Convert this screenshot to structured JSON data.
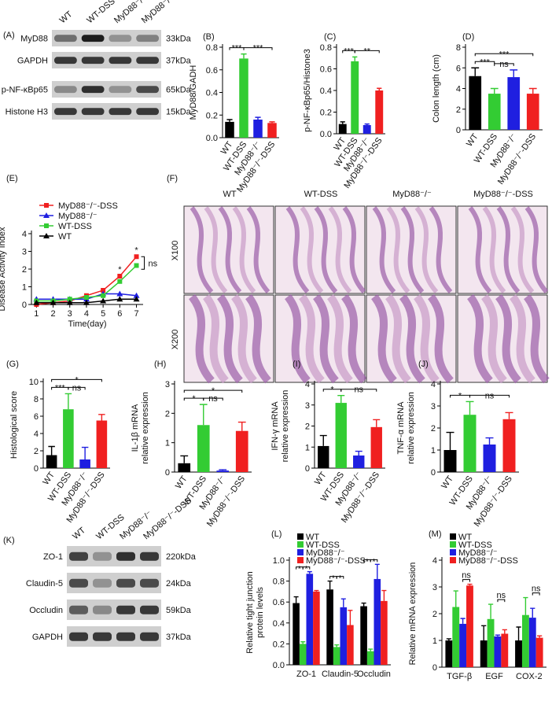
{
  "blots": [
    {
      "label": "(A)",
      "lanes": [
        "WT",
        "WT-DSS",
        "MyD88⁻/⁻",
        "MyD88⁻/⁻-DSS"
      ],
      "rows": [
        {
          "name": "MyD88",
          "size": "33kDa"
        },
        {
          "name": "GAPDH",
          "size": "37kDa"
        },
        {
          "name": "p-NF-κBp65",
          "size": "65kDa"
        },
        {
          "name": "Histone H3",
          "size": "15kDa"
        }
      ]
    },
    {
      "label": "(K)",
      "lanes": [
        "WT",
        "WT-DSS",
        "MyD88⁻/⁻",
        "MyD88⁻/⁻-DSS"
      ],
      "rows": [
        {
          "name": "ZO-1",
          "size": "220kDa"
        },
        {
          "name": "Claudin-5",
          "size": "24kDa"
        },
        {
          "name": "Occludin",
          "size": "59kDa"
        },
        {
          "name": "GAPDH",
          "size": "37kDa"
        }
      ]
    }
  ],
  "histology": {
    "label": "(F)",
    "columns": [
      "WT",
      "WT-DSS",
      "MyD88⁻/⁻",
      "MyD88⁻/⁻-DSS"
    ],
    "rows": [
      "X100",
      "X200"
    ]
  },
  "chart_data": [
    {
      "type": "bar",
      "label": "(B)",
      "ylabel": [
        "MyD88/GADH"
      ],
      "categories": [
        "WT",
        "WT-DSS",
        "MyD88⁻/⁻",
        "MyD88⁻/⁻-DSS"
      ],
      "values": [
        0.14,
        0.7,
        0.16,
        0.13
      ],
      "errors": [
        0.02,
        0.04,
        0.02,
        0.01
      ],
      "colors": [
        "#000000",
        "#33cc33",
        "#1f1fe0",
        "#f02020"
      ],
      "ylim": [
        0,
        0.8
      ],
      "yticks": [
        {
          "value": 0,
          "label": "0.0"
        },
        {
          "value": 0.2,
          "label": "0.2"
        },
        {
          "value": 0.4,
          "label": "0.4"
        },
        {
          "value": 0.6,
          "label": "0.6"
        },
        {
          "value": 0.8,
          "label": "0.8"
        }
      ],
      "annotations": [
        {
          "text": "***",
          "between": [
            "WT",
            "WT-DSS"
          ]
        },
        {
          "text": "***",
          "between": [
            "WT-DSS",
            "MyD88⁻/⁻-DSS"
          ]
        }
      ]
    },
    {
      "type": "bar",
      "label": "(C)",
      "ylabel": [
        "p-NF-κBp65/Histone3"
      ],
      "categories": [
        "WT",
        "WT-DSS",
        "MyD88⁻/⁻",
        "MyD88⁻/⁻-DSS"
      ],
      "values": [
        0.09,
        0.67,
        0.08,
        0.4
      ],
      "errors": [
        0.02,
        0.04,
        0.01,
        0.02
      ],
      "colors": [
        "#000000",
        "#33cc33",
        "#1f1fe0",
        "#f02020"
      ],
      "ylim": [
        0,
        0.8
      ],
      "yticks": [
        {
          "value": 0,
          "label": "0.0"
        },
        {
          "value": 0.2,
          "label": "0.2"
        },
        {
          "value": 0.4,
          "label": "0.4"
        },
        {
          "value": 0.6,
          "label": "0.6"
        },
        {
          "value": 0.8,
          "label": "0.8"
        }
      ],
      "annotations": [
        {
          "text": "***",
          "between": [
            "WT",
            "WT-DSS"
          ]
        },
        {
          "text": "**",
          "between": [
            "WT-DSS",
            "MyD88⁻/⁻-DSS"
          ]
        }
      ]
    },
    {
      "type": "bar",
      "label": "(D)",
      "ylabel": [
        "Colon length (cm)"
      ],
      "categories": [
        "WT",
        "WT-DSS",
        "MyD88⁻/⁻",
        "MyD88⁻/⁻-DSS"
      ],
      "values": [
        5.2,
        3.5,
        5.1,
        3.5
      ],
      "errors": [
        0.8,
        0.5,
        0.7,
        0.5
      ],
      "colors": [
        "#000000",
        "#33cc33",
        "#1f1fe0",
        "#f02020"
      ],
      "ylim": [
        0,
        8
      ],
      "yticks": [
        0,
        2,
        4,
        6,
        8
      ],
      "annotations": [
        {
          "text": "***",
          "between": [
            "WT",
            "WT-DSS"
          ]
        },
        {
          "text": "ns",
          "between": [
            "WT-DSS",
            "MyD88⁻/⁻"
          ]
        },
        {
          "text": "***",
          "between": [
            "WT",
            "MyD88⁻/⁻-DSS"
          ]
        }
      ]
    },
    {
      "type": "line",
      "label": "(E)",
      "ylabel": [
        "Disease Activity Index"
      ],
      "xlabel": "Time(day)",
      "x": [
        1,
        2,
        3,
        4,
        5,
        6,
        7
      ],
      "xlim": [
        0.7,
        7.4
      ],
      "xticks": [
        1,
        2,
        3,
        4,
        5,
        6,
        7
      ],
      "ylim": [
        0,
        4
      ],
      "yticks": [
        0,
        1,
        2,
        3,
        4
      ],
      "legend": "upper left",
      "series": [
        {
          "name": "MyD88⁻/⁻-DSS",
          "color": "#f02020",
          "marker": "square",
          "values": [
            0.0,
            0.1,
            0.2,
            0.5,
            0.8,
            1.6,
            2.7
          ]
        },
        {
          "name": "MyD88⁻/⁻",
          "color": "#1f1fe0",
          "marker": "triangle",
          "values": [
            0.3,
            0.3,
            0.3,
            0.3,
            0.6,
            0.6,
            0.5
          ]
        },
        {
          "name": "WT-DSS",
          "color": "#33cc33",
          "marker": "square",
          "values": [
            0.2,
            0.2,
            0.3,
            0.4,
            0.5,
            1.3,
            2.2
          ]
        },
        {
          "name": "WT",
          "color": "#000000",
          "marker": "triangle",
          "values": [
            0.1,
            0.1,
            0.1,
            0.1,
            0.2,
            0.3,
            0.3
          ]
        }
      ],
      "annotations": [
        {
          "text": "*",
          "x": 6
        },
        {
          "text": "*",
          "x": 7
        },
        {
          "text": "ns"
        }
      ]
    },
    {
      "type": "bar",
      "label": "(G)",
      "ylabel": [
        "Histological score"
      ],
      "categories": [
        "WT",
        "WT-DSS",
        "MyD88⁻/⁻",
        "MyD88⁻/⁻-DSS"
      ],
      "values": [
        1.5,
        6.8,
        1.0,
        5.5
      ],
      "errors": [
        1.0,
        1.8,
        1.4,
        0.7
      ],
      "colors": [
        "#000000",
        "#33cc33",
        "#1f1fe0",
        "#f02020"
      ],
      "ylim": [
        0,
        10
      ],
      "yticks": [
        0,
        2,
        4,
        6,
        8,
        10
      ],
      "annotations": [
        {
          "text": "***",
          "between": [
            "WT",
            "WT-DSS"
          ]
        },
        {
          "text": "ns",
          "between": [
            "WT-DSS",
            "MyD88⁻/⁻"
          ]
        },
        {
          "text": "*",
          "between": [
            "WT",
            "MyD88⁻/⁻-DSS"
          ]
        }
      ]
    },
    {
      "type": "bar",
      "label": "(H)",
      "ylabel": [
        "IL-1β mRNA",
        "relative expression"
      ],
      "categories": [
        "WT",
        "WT-DSS",
        "MyD88⁻/⁻",
        "MyD88⁻/⁻-DSS"
      ],
      "values": [
        0.3,
        1.6,
        0.05,
        1.4
      ],
      "errors": [
        0.25,
        0.7,
        0.03,
        0.3
      ],
      "colors": [
        "#000000",
        "#33cc33",
        "#1f1fe0",
        "#f02020"
      ],
      "ylim": [
        0,
        3
      ],
      "yticks": [
        0,
        1,
        2,
        3
      ],
      "annotations": [
        {
          "text": "*",
          "between": [
            "WT",
            "WT-DSS"
          ]
        },
        {
          "text": "ns",
          "between": [
            "WT-DSS",
            "MyD88⁻/⁻"
          ]
        },
        {
          "text": "*",
          "between": [
            "WT",
            "MyD88⁻/⁻-DSS"
          ]
        }
      ]
    },
    {
      "type": "bar",
      "label": "(I)",
      "ylabel": [
        "IFN-γ mRNA",
        "relative expression"
      ],
      "categories": [
        "WT",
        "WT-DSS",
        "MyD88⁻/⁻",
        "MyD88⁻/⁻-DSS"
      ],
      "values": [
        1.05,
        3.1,
        0.6,
        1.95
      ],
      "errors": [
        0.5,
        0.35,
        0.2,
        0.35
      ],
      "colors": [
        "#000000",
        "#33cc33",
        "#1f1fe0",
        "#f02020"
      ],
      "ylim": [
        0,
        4
      ],
      "yticks": [
        0,
        1,
        2,
        3,
        4
      ],
      "annotations": [
        {
          "text": "*",
          "between": [
            "WT",
            "WT-DSS"
          ]
        },
        {
          "text": "ns",
          "between": [
            "WT-DSS",
            "MyD88⁻/⁻-DSS"
          ]
        }
      ]
    },
    {
      "type": "bar",
      "label": "(J)",
      "ylabel": [
        "TNF-α mRNA",
        "relative expression"
      ],
      "categories": [
        "WT",
        "WT-DSS",
        "MyD88⁻/⁻",
        "MyD88⁻/⁻-DSS"
      ],
      "values": [
        1.0,
        2.6,
        1.25,
        2.4
      ],
      "errors": [
        0.8,
        0.6,
        0.3,
        0.3
      ],
      "colors": [
        "#000000",
        "#33cc33",
        "#1f1fe0",
        "#f02020"
      ],
      "ylim": [
        0,
        4
      ],
      "yticks": [
        0,
        1,
        2,
        3,
        4
      ],
      "annotations": [
        {
          "text": "*",
          "between": [
            "WT",
            "WT-DSS"
          ]
        },
        {
          "text": "ns",
          "between": [
            "WT-DSS",
            "MyD88⁻/⁻-DSS"
          ]
        }
      ]
    },
    {
      "type": "grouped_bar",
      "label": "(L)",
      "ylabel": [
        "Relative tight junction",
        "protein levels"
      ],
      "categories": [
        "ZO-1",
        "Claudin-5",
        "Occludin"
      ],
      "ylim": [
        0,
        1.0
      ],
      "yticks": [
        {
          "value": 0,
          "label": "0.0"
        },
        {
          "value": 0.2,
          "label": "0.2"
        },
        {
          "value": 0.4,
          "label": "0.4"
        },
        {
          "value": 0.6,
          "label": "0.6"
        },
        {
          "value": 0.8,
          "label": "0.8"
        },
        {
          "value": 1.0,
          "label": "1.0"
        }
      ],
      "series": [
        {
          "name": "WT",
          "color": "#000000",
          "values": [
            0.59,
            0.72,
            0.56
          ],
          "errors": [
            0.06,
            0.08,
            0.03
          ]
        },
        {
          "name": "WT-DSS",
          "color": "#33cc33",
          "values": [
            0.2,
            0.17,
            0.13
          ],
          "errors": [
            0.02,
            0.02,
            0.02
          ]
        },
        {
          "name": "MyD88⁻/⁻",
          "color": "#1f1fe0",
          "values": [
            0.87,
            0.55,
            0.82
          ],
          "errors": [
            0.02,
            0.08,
            0.14
          ]
        },
        {
          "name": "MyD88⁻/⁻-DSS",
          "color": "#f02020",
          "values": [
            0.7,
            0.38,
            0.61
          ],
          "errors": [
            0.01,
            0.14,
            0.1
          ]
        }
      ],
      "annotations": [
        {
          "text": "*",
          "category": "ZO-1"
        },
        {
          "text": "*",
          "category": "ZO-1"
        },
        {
          "text": "*",
          "category": "Claudin-5"
        },
        {
          "text": "*",
          "category": "Claudin-5"
        },
        {
          "text": "*",
          "category": "Occludin"
        },
        {
          "text": "*",
          "category": "Occludin"
        }
      ]
    },
    {
      "type": "grouped_bar",
      "label": "(M)",
      "ylabel": [
        "Relative mRNA expression"
      ],
      "categories": [
        "TGF-β",
        "EGF",
        "COX-2"
      ],
      "ylim": [
        0,
        4
      ],
      "yticks": [
        0,
        1,
        2,
        3,
        4
      ],
      "series": [
        {
          "name": "WT",
          "color": "#000000",
          "values": [
            1.0,
            1.0,
            1.0
          ],
          "errors": [
            0.06,
            0.55,
            0.5
          ]
        },
        {
          "name": "WT-DSS",
          "color": "#33cc33",
          "values": [
            2.25,
            1.8,
            1.95
          ],
          "errors": [
            0.6,
            0.55,
            0.65
          ]
        },
        {
          "name": "MyD88⁻/⁻",
          "color": "#1f1fe0",
          "values": [
            1.62,
            1.15,
            1.85
          ],
          "errors": [
            0.2,
            0.05,
            0.35
          ]
        },
        {
          "name": "MyD88⁻/⁻-DSS",
          "color": "#f02020",
          "values": [
            3.05,
            1.25,
            1.1
          ],
          "errors": [
            0.05,
            0.15,
            0.07
          ]
        }
      ],
      "annotations": [
        {
          "text": "ns",
          "category": "TGF-β"
        },
        {
          "text": "ns",
          "category": "EGF"
        },
        {
          "text": "ns",
          "category": "COX-2"
        }
      ]
    }
  ]
}
